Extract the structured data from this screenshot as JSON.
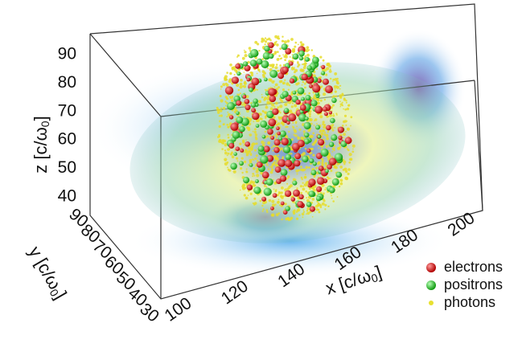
{
  "axes": {
    "x": {
      "label": "x [c/ω",
      "sub": "0",
      "close": "]",
      "ticks": [
        "100",
        "120",
        "140",
        "160",
        "180",
        "200"
      ]
    },
    "y": {
      "label": "y [c/ω",
      "sub": "0",
      "close": "]",
      "ticks": [
        "90",
        "80",
        "70",
        "60",
        "50",
        "40",
        "30"
      ]
    },
    "z": {
      "label": "z [c/ω",
      "sub": "0",
      "close": "]",
      "ticks": [
        "90",
        "80",
        "70",
        "60",
        "50",
        "40"
      ]
    }
  },
  "legend": [
    {
      "name": "electrons",
      "color": "#d81e1e"
    },
    {
      "name": "positrons",
      "color": "#2ec82e"
    },
    {
      "name": "photons",
      "color": "#e8e030"
    }
  ]
}
